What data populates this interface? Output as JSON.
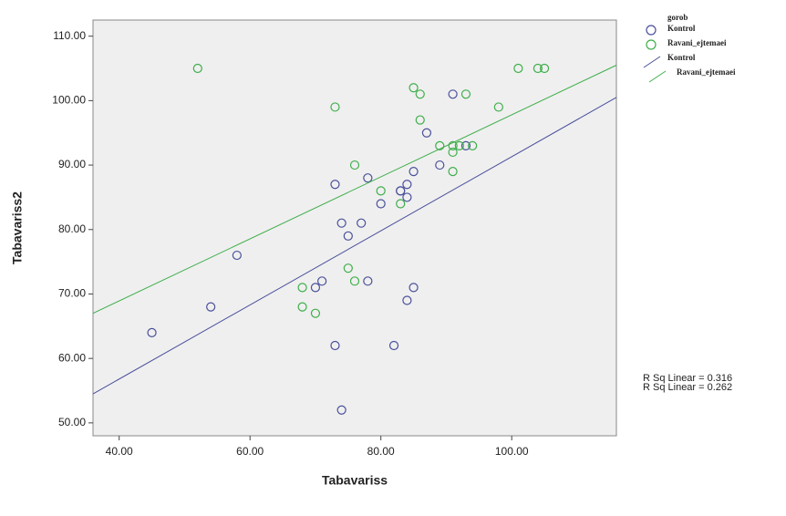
{
  "chart_data": {
    "type": "scatter",
    "x_label": "Tabavariss",
    "y_label": "Tabavariss2",
    "legend_title": "gorob",
    "xlim": [
      36,
      116
    ],
    "ylim": [
      48,
      112.5
    ],
    "xticks": [
      {
        "value": 40,
        "label": "40.00"
      },
      {
        "value": 60,
        "label": "60.00"
      },
      {
        "value": 80,
        "label": "80.00"
      },
      {
        "value": 100,
        "label": "100.00"
      }
    ],
    "yticks": [
      {
        "value": 50,
        "label": "50.00"
      },
      {
        "value": 60,
        "label": "60.00"
      },
      {
        "value": 70,
        "label": "70.00"
      },
      {
        "value": 80,
        "label": "80.00"
      },
      {
        "value": 90,
        "label": "90.00"
      },
      {
        "value": 100,
        "label": "100.00"
      },
      {
        "value": 110,
        "label": "110.00"
      }
    ],
    "series": [
      {
        "name": "Kontrol",
        "color": "#4a4f9a",
        "x": [
          45,
          54,
          58,
          70,
          71,
          73,
          73,
          74,
          75,
          77,
          78,
          78,
          80,
          82,
          83,
          83,
          84,
          84,
          84,
          85,
          85,
          87,
          89,
          91,
          93,
          74
        ],
        "y": [
          64,
          68,
          76,
          71,
          72,
          87,
          62,
          81,
          79,
          81,
          88,
          72,
          84,
          62,
          86,
          86,
          87,
          85,
          69,
          71,
          89,
          95,
          90,
          101,
          93,
          52
        ],
        "fit_name": "Kontrol",
        "fit": {
          "x": [
            36,
            116
          ],
          "y": [
            54.5,
            100.5
          ]
        }
      },
      {
        "name": "Ravani_ejtemaei",
        "color": "#3dae4a",
        "x": [
          52,
          68,
          68,
          70,
          73,
          76,
          75,
          76,
          80,
          83,
          85,
          86,
          86,
          89,
          91,
          91,
          91,
          92,
          93,
          94,
          98,
          101,
          104,
          105
        ],
        "y": [
          105,
          71,
          68,
          67,
          99,
          90,
          74,
          72,
          86,
          84,
          102,
          101,
          97,
          93,
          93,
          92,
          89,
          93,
          101,
          93,
          99,
          105,
          105,
          105
        ],
        "fit_name": "Ravani_ejtemaei",
        "fit": {
          "x": [
            36,
            116
          ],
          "y": [
            67,
            105.5
          ]
        }
      }
    ],
    "annotations": [
      "R Sq Linear = 0.316",
      "R Sq Linear = 0.262"
    ]
  }
}
